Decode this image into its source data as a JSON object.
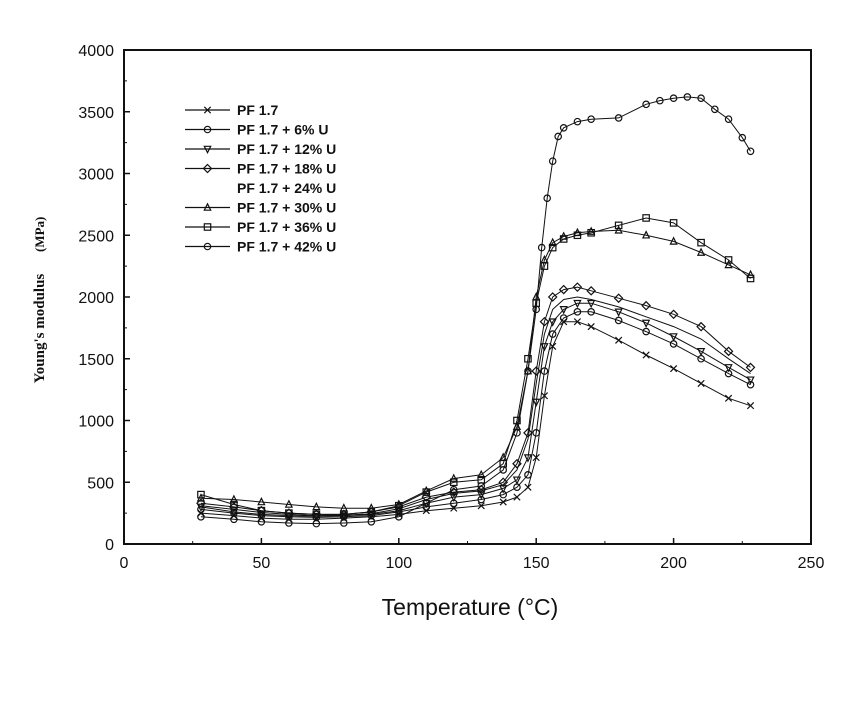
{
  "chart_data": {
    "type": "scatter",
    "title": "",
    "xlabel": "Temperature (°C)",
    "ylabel": "Young's modulus",
    "ylabel_unit": "(MPa)",
    "xlim": [
      0,
      250
    ],
    "ylim": [
      0,
      4000
    ],
    "xticks": [
      "0",
      "50",
      "100",
      "150",
      "200",
      "250"
    ],
    "yticks": [
      "0",
      "500",
      "1000",
      "1500",
      "2000",
      "2500",
      "3000",
      "3500",
      "4000"
    ],
    "legend_position": "top-left",
    "grid": false,
    "series": [
      {
        "name": "PF 1.7",
        "marker": "x",
        "x": [
          28,
          40,
          50,
          60,
          70,
          80,
          90,
          100,
          110,
          120,
          130,
          138,
          143,
          147,
          150,
          153,
          156,
          160,
          165,
          170,
          180,
          190,
          200,
          210,
          220,
          228
        ],
        "y": [
          250,
          230,
          210,
          200,
          200,
          210,
          220,
          240,
          270,
          290,
          310,
          340,
          380,
          460,
          700,
          1200,
          1600,
          1800,
          1800,
          1760,
          1650,
          1530,
          1420,
          1300,
          1180,
          1120
        ]
      },
      {
        "name": "PF 1.7 + 6% U",
        "marker": "circle",
        "x": [
          28,
          40,
          50,
          60,
          70,
          80,
          90,
          100,
          110,
          120,
          130,
          138,
          143,
          147,
          150,
          153,
          156,
          160,
          165,
          170,
          180,
          190,
          200,
          210,
          220,
          228
        ],
        "y": [
          280,
          250,
          230,
          220,
          215,
          220,
          230,
          260,
          300,
          330,
          360,
          400,
          460,
          560,
          900,
          1400,
          1700,
          1830,
          1880,
          1880,
          1810,
          1720,
          1620,
          1500,
          1380,
          1290
        ]
      },
      {
        "name": "PF 1.7 + 12% U",
        "marker": "triangle-down",
        "x": [
          28,
          40,
          50,
          60,
          70,
          80,
          90,
          100,
          110,
          120,
          130,
          138,
          143,
          147,
          150,
          153,
          156,
          160,
          165,
          170,
          180,
          190,
          200,
          210,
          220,
          228
        ],
        "y": [
          300,
          260,
          240,
          230,
          225,
          230,
          240,
          270,
          330,
          380,
          400,
          450,
          520,
          700,
          1150,
          1600,
          1800,
          1900,
          1950,
          1950,
          1880,
          1790,
          1680,
          1560,
          1430,
          1330
        ]
      },
      {
        "name": "PF 1.7 + 18% U",
        "marker": "diamond",
        "x": [
          28,
          40,
          50,
          60,
          70,
          80,
          90,
          100,
          110,
          120,
          130,
          138,
          143,
          147,
          150,
          153,
          156,
          160,
          165,
          170,
          180,
          190,
          200,
          210,
          220,
          228
        ],
        "y": [
          330,
          300,
          270,
          250,
          240,
          240,
          260,
          300,
          380,
          420,
          440,
          500,
          650,
          900,
          1400,
          1800,
          2000,
          2060,
          2080,
          2050,
          1990,
          1930,
          1860,
          1760,
          1560,
          1430
        ]
      },
      {
        "name": "PF 1.7 + 24% U",
        "marker": "none",
        "x": [
          28,
          40,
          50,
          60,
          70,
          80,
          90,
          100,
          110,
          120,
          130,
          138,
          143,
          147,
          150,
          153,
          156,
          160,
          165,
          170,
          180,
          190,
          200,
          210,
          220,
          228
        ],
        "y": [
          310,
          280,
          255,
          240,
          230,
          232,
          245,
          285,
          360,
          410,
          430,
          480,
          600,
          850,
          1300,
          1700,
          1900,
          1980,
          2000,
          1980,
          1920,
          1840,
          1760,
          1660,
          1500,
          1380
        ]
      },
      {
        "name": "PF 1.7 + 30% U",
        "marker": "triangle-up",
        "x": [
          28,
          40,
          50,
          60,
          70,
          80,
          90,
          100,
          110,
          120,
          130,
          138,
          143,
          147,
          150,
          153,
          156,
          160,
          165,
          170,
          180,
          190,
          200,
          210,
          220,
          228
        ],
        "y": [
          370,
          360,
          340,
          320,
          300,
          290,
          290,
          320,
          430,
          530,
          560,
          700,
          950,
          1400,
          2000,
          2300,
          2440,
          2490,
          2520,
          2530,
          2540,
          2500,
          2450,
          2360,
          2260,
          2180
        ]
      },
      {
        "name": "PF 1.7 + 36% U",
        "marker": "square",
        "x": [
          28,
          40,
          50,
          60,
          70,
          80,
          90,
          100,
          110,
          120,
          130,
          138,
          143,
          147,
          150,
          153,
          156,
          160,
          165,
          170,
          180,
          190,
          200,
          210,
          220,
          228
        ],
        "y": [
          400,
          320,
          270,
          250,
          240,
          240,
          260,
          310,
          420,
          500,
          520,
          650,
          1000,
          1500,
          1950,
          2250,
          2400,
          2470,
          2500,
          2520,
          2580,
          2640,
          2600,
          2440,
          2300,
          2150
        ]
      },
      {
        "name": "PF 1.7 + 42% U",
        "marker": "circle",
        "x": [
          28,
          40,
          50,
          60,
          70,
          80,
          90,
          100,
          110,
          120,
          130,
          138,
          143,
          147,
          150,
          152,
          154,
          156,
          158,
          160,
          165,
          170,
          180,
          190,
          195,
          200,
          205,
          210,
          215,
          220,
          225,
          228
        ],
        "y": [
          220,
          200,
          180,
          170,
          165,
          170,
          180,
          220,
          330,
          440,
          470,
          600,
          900,
          1400,
          1900,
          2400,
          2800,
          3100,
          3300,
          3370,
          3420,
          3440,
          3450,
          3560,
          3590,
          3610,
          3620,
          3610,
          3520,
          3440,
          3290,
          3180
        ]
      }
    ]
  }
}
